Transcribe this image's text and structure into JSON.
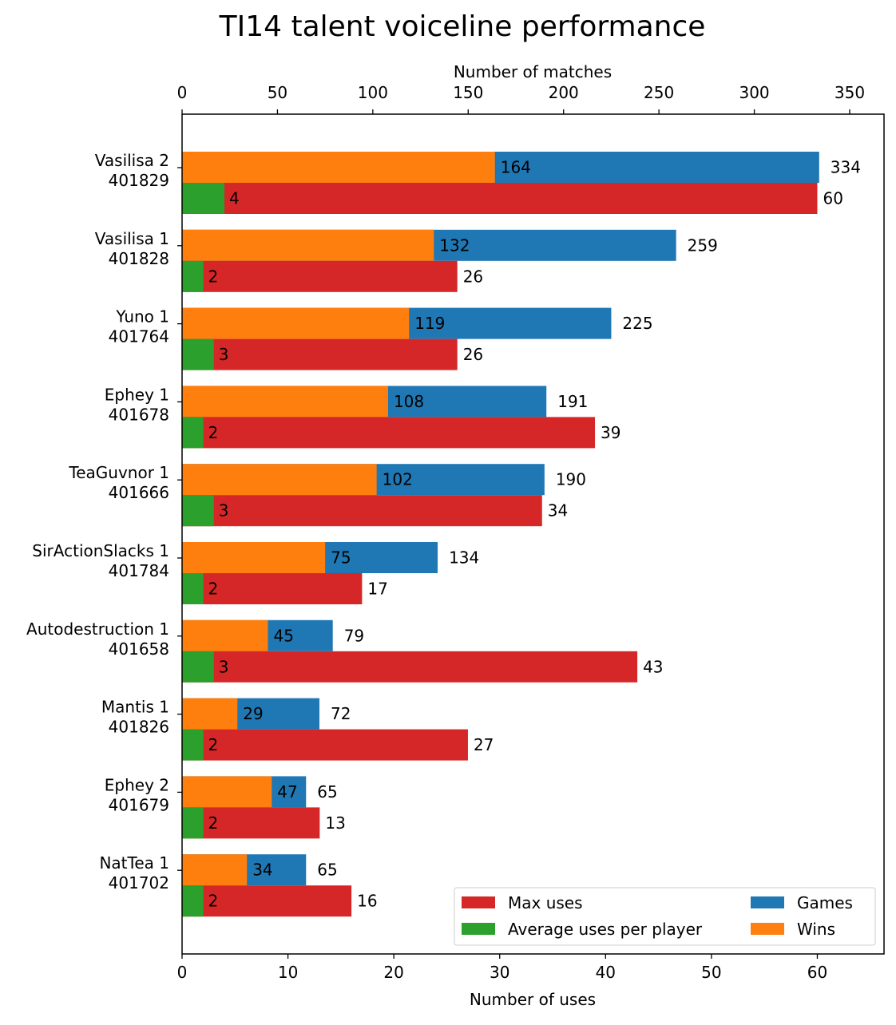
{
  "chart_data": {
    "type": "bar",
    "orientation": "horizontal",
    "title": "TI14 talent voiceline performance",
    "xlabel_bottom": "Number of uses",
    "xlabel_top": "Number of matches",
    "xlim_bottom": [
      0,
      66.3
    ],
    "xlim_top": [
      0,
      368
    ],
    "xticks_bottom": [
      "0",
      "10",
      "20",
      "30",
      "40",
      "50",
      "60"
    ],
    "xticks_bottom_values": [
      0,
      10,
      20,
      30,
      40,
      50,
      60
    ],
    "xticks_top": [
      "0",
      "50",
      "100",
      "150",
      "200",
      "250",
      "300",
      "350"
    ],
    "xticks_top_values": [
      0,
      50,
      100,
      150,
      200,
      250,
      300,
      350
    ],
    "grid": false,
    "legend_position": "bottom-right",
    "categories": [
      {
        "name": "Vasilisa 2",
        "id": "401829"
      },
      {
        "name": "Vasilisa 1",
        "id": "401828"
      },
      {
        "name": "Yuno 1",
        "id": "401764"
      },
      {
        "name": "Ephey 1",
        "id": "401678"
      },
      {
        "name": "TeaGuvnor 1",
        "id": "401666"
      },
      {
        "name": "SirActionSlacks 1",
        "id": "401784"
      },
      {
        "name": "Autodestruction 1",
        "id": "401658"
      },
      {
        "name": "Mantis 1",
        "id": "401826"
      },
      {
        "name": "Ephey 2",
        "id": "401679"
      },
      {
        "name": "NatTea 1",
        "id": "401702"
      }
    ],
    "series": [
      {
        "name": "Games",
        "axis": "top",
        "color": "#1f77b4",
        "values": [
          334,
          259,
          225,
          191,
          190,
          134,
          79,
          72,
          65,
          65
        ]
      },
      {
        "name": "Wins",
        "axis": "top",
        "color": "#ff7f0e",
        "values": [
          164,
          132,
          119,
          108,
          102,
          75,
          45,
          29,
          47,
          34
        ]
      },
      {
        "name": "Max uses",
        "axis": "bottom",
        "color": "#d62728",
        "values": [
          60,
          26,
          26,
          39,
          34,
          17,
          43,
          27,
          13,
          16
        ]
      },
      {
        "name": "Average uses per player",
        "axis": "bottom",
        "color": "#2ca02c",
        "values": [
          4,
          2,
          3,
          2,
          3,
          2,
          3,
          2,
          2,
          2
        ]
      }
    ],
    "legend": [
      {
        "label": "Max uses",
        "color": "#d62728"
      },
      {
        "label": "Games",
        "color": "#1f77b4"
      },
      {
        "label": "Average uses per player",
        "color": "#2ca02c"
      },
      {
        "label": "Wins",
        "color": "#ff7f0e"
      }
    ]
  }
}
